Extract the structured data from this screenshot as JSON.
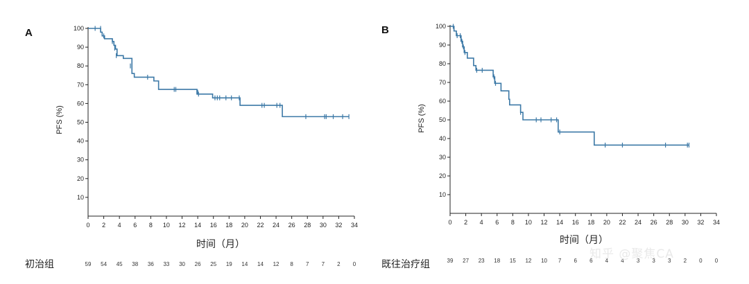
{
  "watermark": "知乎 @聚焦CA",
  "chart_data": [
    {
      "type": "line",
      "panel": "A",
      "ylabel": "PFS (%)",
      "xlabel": "时间（月）",
      "xticks": [
        0,
        2,
        4,
        6,
        8,
        10,
        12,
        14,
        16,
        18,
        20,
        22,
        24,
        26,
        28,
        30,
        32,
        34
      ],
      "yticks": [
        10,
        20,
        30,
        40,
        50,
        60,
        70,
        80,
        90,
        100
      ],
      "xlim": [
        0,
        34
      ],
      "ylim": [
        0,
        100
      ],
      "line_color": "#3b78a6",
      "series": [
        {
          "steps": [
            [
              0,
              100
            ],
            [
              1.6,
              98
            ],
            [
              1.8,
              96
            ],
            [
              2.1,
              94.5
            ],
            [
              3.1,
              93
            ],
            [
              3.3,
              91
            ],
            [
              3.5,
              89
            ],
            [
              3.7,
              85.5
            ],
            [
              4.5,
              84
            ],
            [
              5.6,
              80
            ],
            [
              5.6,
              76
            ],
            [
              5.9,
              74
            ],
            [
              8.4,
              72
            ],
            [
              9.0,
              67.5
            ],
            [
              13.9,
              65
            ],
            [
              15.9,
              63
            ],
            [
              19.4,
              59
            ],
            [
              24.8,
              53
            ],
            [
              33.3,
              53
            ]
          ],
          "censors": [
            [
              0.9,
              100
            ],
            [
              1.6,
              100
            ],
            [
              2.0,
              96
            ],
            [
              3.1,
              93
            ],
            [
              3.4,
              89.5
            ],
            [
              3.6,
              85.5
            ],
            [
              5.4,
              80
            ],
            [
              7.6,
              74
            ],
            [
              11.0,
              67.5
            ],
            [
              11.2,
              67.5
            ],
            [
              14.0,
              66
            ],
            [
              14.1,
              65
            ],
            [
              16.2,
              63
            ],
            [
              16.5,
              63
            ],
            [
              16.8,
              63
            ],
            [
              17.6,
              63
            ],
            [
              18.3,
              63
            ],
            [
              19.3,
              63
            ],
            [
              22.2,
              59
            ],
            [
              22.5,
              59
            ],
            [
              24.1,
              59
            ],
            [
              24.5,
              59
            ],
            [
              27.8,
              53
            ],
            [
              30.2,
              53
            ],
            [
              30.4,
              53
            ],
            [
              31.3,
              53
            ],
            [
              32.5,
              53
            ],
            [
              33.3,
              53
            ]
          ]
        }
      ],
      "risk_table": {
        "label": "初治组",
        "x": [
          0,
          2,
          4,
          6,
          8,
          10,
          12,
          14,
          16,
          18,
          20,
          22,
          24,
          26,
          28,
          30,
          32,
          34
        ],
        "values": [
          "59",
          "54",
          "45",
          "38",
          "36",
          "33",
          "30",
          "26",
          "25",
          "19",
          "14",
          "14",
          "12",
          "8",
          "7",
          "7",
          "2",
          "0"
        ]
      }
    },
    {
      "type": "line",
      "panel": "B",
      "ylabel": "PFS (%)",
      "xlabel": "时间（月）",
      "xticks": [
        0,
        2,
        4,
        6,
        8,
        10,
        12,
        14,
        16,
        18,
        20,
        22,
        24,
        26,
        28,
        30,
        32,
        34
      ],
      "yticks": [
        10,
        20,
        30,
        40,
        50,
        60,
        70,
        80,
        90,
        100
      ],
      "xlim": [
        0,
        34
      ],
      "ylim": [
        0,
        100
      ],
      "line_color": "#3b78a6",
      "series": [
        {
          "steps": [
            [
              0,
              100
            ],
            [
              0.5,
              97.5
            ],
            [
              0.8,
              95
            ],
            [
              1.4,
              92
            ],
            [
              1.6,
              89
            ],
            [
              1.8,
              86
            ],
            [
              2.2,
              83
            ],
            [
              3.0,
              79
            ],
            [
              3.3,
              76.5
            ],
            [
              5.5,
              73
            ],
            [
              5.7,
              69.5
            ],
            [
              6.5,
              65.5
            ],
            [
              7.5,
              61
            ],
            [
              7.6,
              58
            ],
            [
              9.0,
              54
            ],
            [
              9.3,
              50
            ],
            [
              13.8,
              43.5
            ],
            [
              18.4,
              36.5
            ],
            [
              30.5,
              36.5
            ]
          ],
          "censors": [
            [
              0.4,
              100
            ],
            [
              0.9,
              95
            ],
            [
              1.3,
              95
            ],
            [
              1.5,
              92
            ],
            [
              1.7,
              89
            ],
            [
              1.9,
              86
            ],
            [
              3.4,
              76.5
            ],
            [
              4.1,
              76.5
            ],
            [
              5.6,
              73
            ],
            [
              5.8,
              69.5
            ],
            [
              9.0,
              54
            ],
            [
              11.0,
              50
            ],
            [
              11.6,
              50
            ],
            [
              12.9,
              50
            ],
            [
              13.6,
              50
            ],
            [
              14.0,
              43.5
            ],
            [
              19.8,
              36.5
            ],
            [
              22.0,
              36.5
            ],
            [
              27.5,
              36.5
            ],
            [
              30.3,
              36.5
            ],
            [
              30.5,
              36.5
            ]
          ]
        }
      ],
      "risk_table": {
        "label": "既往治疗组",
        "x": [
          0,
          2,
          4,
          6,
          8,
          10,
          12,
          14,
          16,
          18,
          20,
          22,
          24,
          26,
          28,
          30,
          32,
          34
        ],
        "values": [
          "39",
          "27",
          "23",
          "18",
          "15",
          "12",
          "10",
          "7",
          "6",
          "6",
          "4",
          "4",
          "3",
          "3",
          "3",
          "2",
          "0",
          "0"
        ]
      }
    }
  ]
}
